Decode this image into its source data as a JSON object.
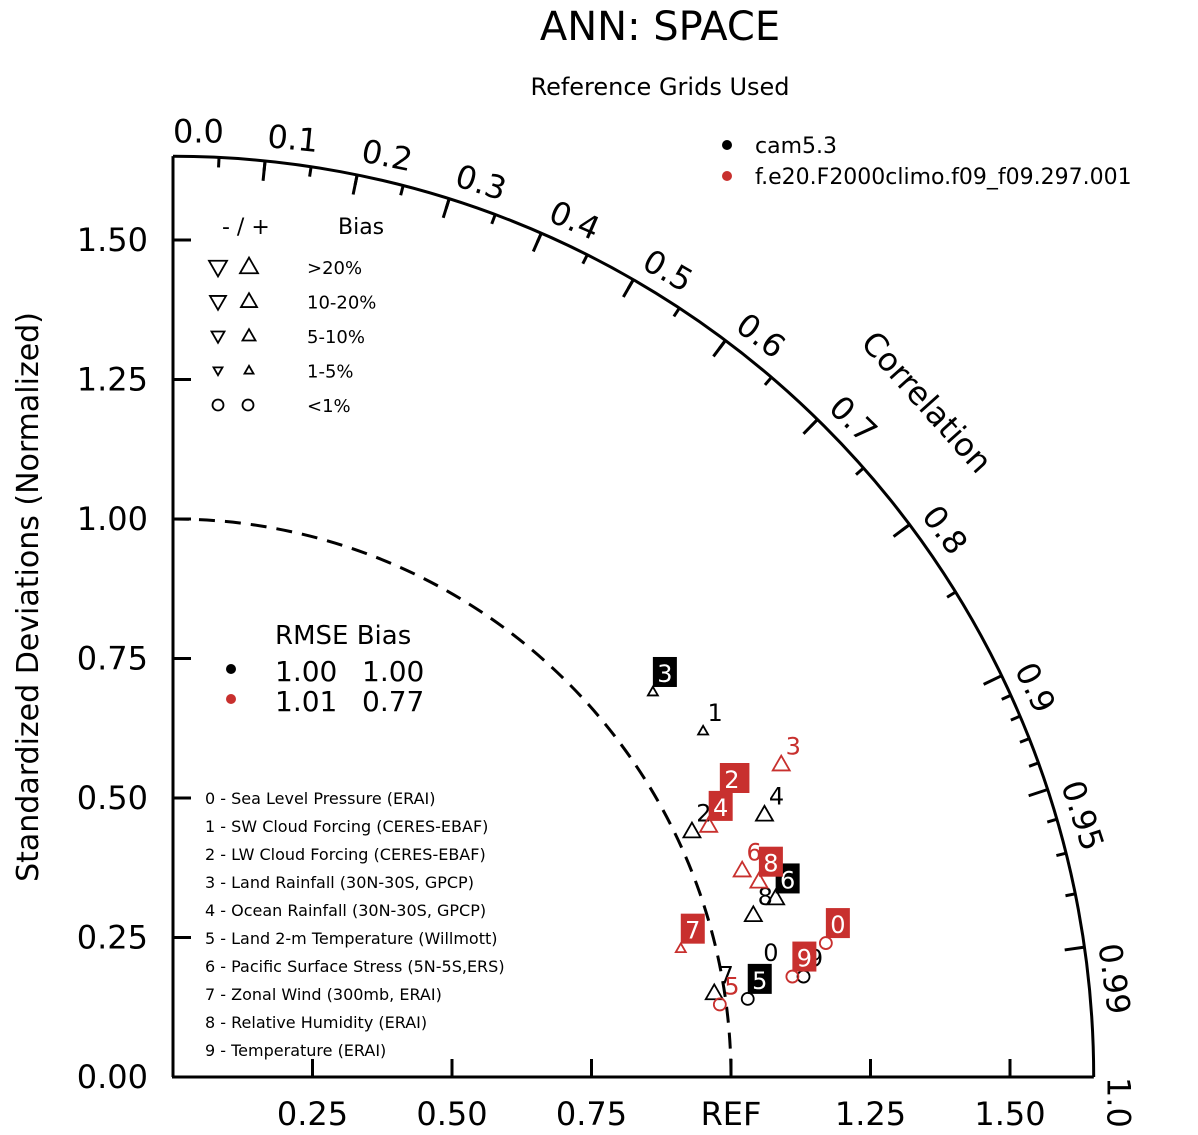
{
  "chart_data": {
    "type": "scatter",
    "subtype": "taylor diagram",
    "title": "ANN: SPACE",
    "subtitle": "Reference Grids Used",
    "ylabel": "Standardized Deviations (Normalized)",
    "arc_label": "Correlation",
    "ref_label": "REF",
    "ylim": [
      0,
      1.65
    ],
    "xlim": [
      0,
      1.65
    ],
    "y_ticks": [
      "0.00",
      "0.25",
      "0.50",
      "0.75",
      "1.00",
      "1.25",
      "1.50"
    ],
    "x_ticks": [
      "0.25",
      "0.50",
      "0.75",
      "REF",
      "1.25",
      "1.50"
    ],
    "correlation_ticks": [
      "0.0",
      "0.1",
      "0.2",
      "0.3",
      "0.4",
      "0.5",
      "0.6",
      "0.7",
      "0.8",
      "0.9",
      "0.95",
      "0.99",
      "1.0"
    ],
    "ref_circle_radius": 1.0,
    "series": [
      {
        "name": "cam5.3",
        "color": "#000000",
        "rmse": "1.00",
        "bias": "1.00",
        "points": [
          {
            "id": "0",
            "x": 1.05,
            "y": 0.19,
            "marker": "circle",
            "boxed": false
          },
          {
            "id": "1",
            "x": 0.95,
            "y": 0.62,
            "marker": "tri-up-small",
            "boxed": false
          },
          {
            "id": "2",
            "x": 0.93,
            "y": 0.44,
            "marker": "tri-up",
            "boxed": false
          },
          {
            "id": "3",
            "x": 0.86,
            "y": 0.69,
            "marker": "tri-up-small",
            "boxed": true
          },
          {
            "id": "4",
            "x": 1.06,
            "y": 0.47,
            "marker": "tri-up",
            "boxed": false
          },
          {
            "id": "5",
            "x": 1.03,
            "y": 0.14,
            "marker": "circle",
            "boxed": true
          },
          {
            "id": "6",
            "x": 1.08,
            "y": 0.32,
            "marker": "tri-up",
            "boxed": true
          },
          {
            "id": "7",
            "x": 0.97,
            "y": 0.15,
            "marker": "tri-up",
            "boxed": false
          },
          {
            "id": "8",
            "x": 1.04,
            "y": 0.29,
            "marker": "tri-up",
            "boxed": false
          },
          {
            "id": "9",
            "x": 1.13,
            "y": 0.18,
            "marker": "circle",
            "boxed": false
          }
        ]
      },
      {
        "name": "f.e20.F2000climo.f09_f09.297.001",
        "color": "#c8302e",
        "rmse": "1.01",
        "bias": "0.77",
        "points": [
          {
            "id": "0",
            "x": 1.17,
            "y": 0.24,
            "marker": "circle",
            "boxed": true
          },
          {
            "id": "1",
            "x": 0.99,
            "y": 0.5,
            "marker": "tri-up-small",
            "boxed": true
          },
          {
            "id": "2",
            "x": 0.98,
            "y": 0.5,
            "marker": "tri-up-small",
            "boxed": true
          },
          {
            "id": "3",
            "x": 1.09,
            "y": 0.56,
            "marker": "tri-up",
            "boxed": false
          },
          {
            "id": "4",
            "x": 0.96,
            "y": 0.45,
            "marker": "tri-up",
            "boxed": true
          },
          {
            "id": "5",
            "x": 0.98,
            "y": 0.13,
            "marker": "circle",
            "boxed": false
          },
          {
            "id": "6",
            "x": 1.02,
            "y": 0.37,
            "marker": "tri-up",
            "boxed": false
          },
          {
            "id": "7",
            "x": 0.91,
            "y": 0.23,
            "marker": "tri-up-small",
            "boxed": true
          },
          {
            "id": "8",
            "x": 1.05,
            "y": 0.35,
            "marker": "tri-up",
            "boxed": true
          },
          {
            "id": "9",
            "x": 1.11,
            "y": 0.18,
            "marker": "circle",
            "boxed": true
          }
        ]
      }
    ],
    "variables": [
      "0 - Sea Level Pressure (ERAI)",
      "1 - SW Cloud Forcing (CERES-EBAF)",
      "2 - LW Cloud Forcing (CERES-EBAF)",
      "3 - Land Rainfall (30N-30S, GPCP)",
      "4 - Ocean Rainfall (30N-30S, GPCP)",
      "5 - Land 2-m Temperature (Willmott)",
      "6 - Pacific Surface Stress (5N-5S,ERS)",
      "7 - Zonal Wind (300mb, ERAI)",
      "8 - Relative Humidity (ERAI)",
      "9 - Temperature (ERAI)"
    ],
    "bias_legend": {
      "header_symbols": "-  /  +",
      "header_label": "Bias",
      "rows": [
        ">20%",
        "10-20%",
        "5-10%",
        "1-5%",
        "<1%"
      ]
    },
    "stats_legend": {
      "header": "RMSE Bias"
    }
  }
}
